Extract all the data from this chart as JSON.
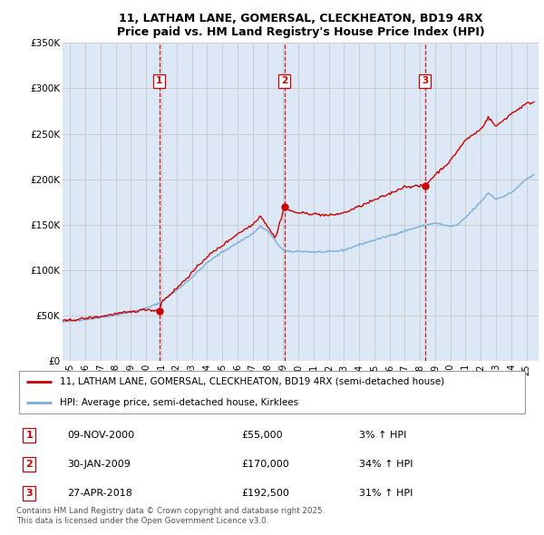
{
  "title_line1": "11, LATHAM LANE, GOMERSAL, CLECKHEATON, BD19 4RX",
  "title_line2": "Price paid vs. HM Land Registry's House Price Index (HPI)",
  "ylim": [
    0,
    350000
  ],
  "yticks": [
    0,
    50000,
    100000,
    150000,
    200000,
    250000,
    300000,
    350000
  ],
  "ytick_labels": [
    "£0",
    "£50K",
    "£100K",
    "£150K",
    "£200K",
    "£250K",
    "£300K",
    "£350K"
  ],
  "sale_color": "#cc0000",
  "hpi_color": "#7aaddb",
  "vline_color": "#cc0000",
  "grid_color": "#cccccc",
  "bg_color": "#dce8f5",
  "legend_label_sale": "11, LATHAM LANE, GOMERSAL, CLECKHEATON, BD19 4RX (semi-detached house)",
  "legend_label_hpi": "HPI: Average price, semi-detached house, Kirklees",
  "sales": [
    {
      "date_year": 2000.86,
      "price": 55000,
      "label": "1"
    },
    {
      "date_year": 2009.08,
      "price": 170000,
      "label": "2"
    },
    {
      "date_year": 2018.33,
      "price": 192500,
      "label": "3"
    }
  ],
  "hpi_keypoints_x": [
    1994.5,
    1995,
    1996,
    1997,
    1998,
    1999,
    2000,
    2001,
    2002,
    2003,
    2004,
    2005,
    2006,
    2007,
    2007.5,
    2008,
    2008.5,
    2009,
    2009.5,
    2010,
    2011,
    2012,
    2013,
    2014,
    2015,
    2016,
    2017,
    2018,
    2019,
    2020,
    2020.5,
    2021,
    2022,
    2022.5,
    2023,
    2024,
    2025,
    2025.5
  ],
  "hpi_keypoints_y": [
    43000,
    44000,
    46000,
    48000,
    51000,
    54000,
    58000,
    65000,
    78000,
    92000,
    108000,
    120000,
    130000,
    140000,
    148000,
    143000,
    132000,
    122000,
    120000,
    121000,
    120000,
    120000,
    122000,
    128000,
    133000,
    138000,
    143000,
    148000,
    152000,
    148000,
    150000,
    158000,
    175000,
    185000,
    178000,
    185000,
    200000,
    205000
  ],
  "red_keypoints_x": [
    1994.5,
    1995,
    1996,
    1997,
    1998,
    1999,
    2000,
    2000.86,
    2001,
    2002,
    2003,
    2004,
    2005,
    2006,
    2007,
    2007.5,
    2008,
    2008.5,
    2009.08,
    2009.2,
    2009.5,
    2010,
    2011,
    2012,
    2013,
    2014,
    2015,
    2016,
    2017,
    2018.33,
    2018.5,
    2019,
    2020,
    2020.5,
    2021,
    2022,
    2022.5,
    2023,
    2024,
    2025,
    2025.5
  ],
  "red_keypoints_y": [
    44000,
    45000,
    47000,
    49000,
    52000,
    54000,
    57000,
    55000,
    65000,
    80000,
    97000,
    115000,
    127000,
    140000,
    150000,
    160000,
    148000,
    135000,
    170000,
    168000,
    165000,
    163000,
    162000,
    160000,
    163000,
    170000,
    177000,
    184000,
    192000,
    192500,
    196000,
    205000,
    220000,
    232000,
    243000,
    255000,
    268000,
    258000,
    272000,
    283000,
    285000
  ],
  "sale_table": [
    {
      "num": "1",
      "date": "09-NOV-2000",
      "price": "£55,000",
      "hpi": "3% ↑ HPI"
    },
    {
      "num": "2",
      "date": "30-JAN-2009",
      "price": "£170,000",
      "hpi": "34% ↑ HPI"
    },
    {
      "num": "3",
      "date": "27-APR-2018",
      "price": "£192,500",
      "hpi": "31% ↑ HPI"
    }
  ],
  "footer": "Contains HM Land Registry data © Crown copyright and database right 2025.\nThis data is licensed under the Open Government Licence v3.0."
}
